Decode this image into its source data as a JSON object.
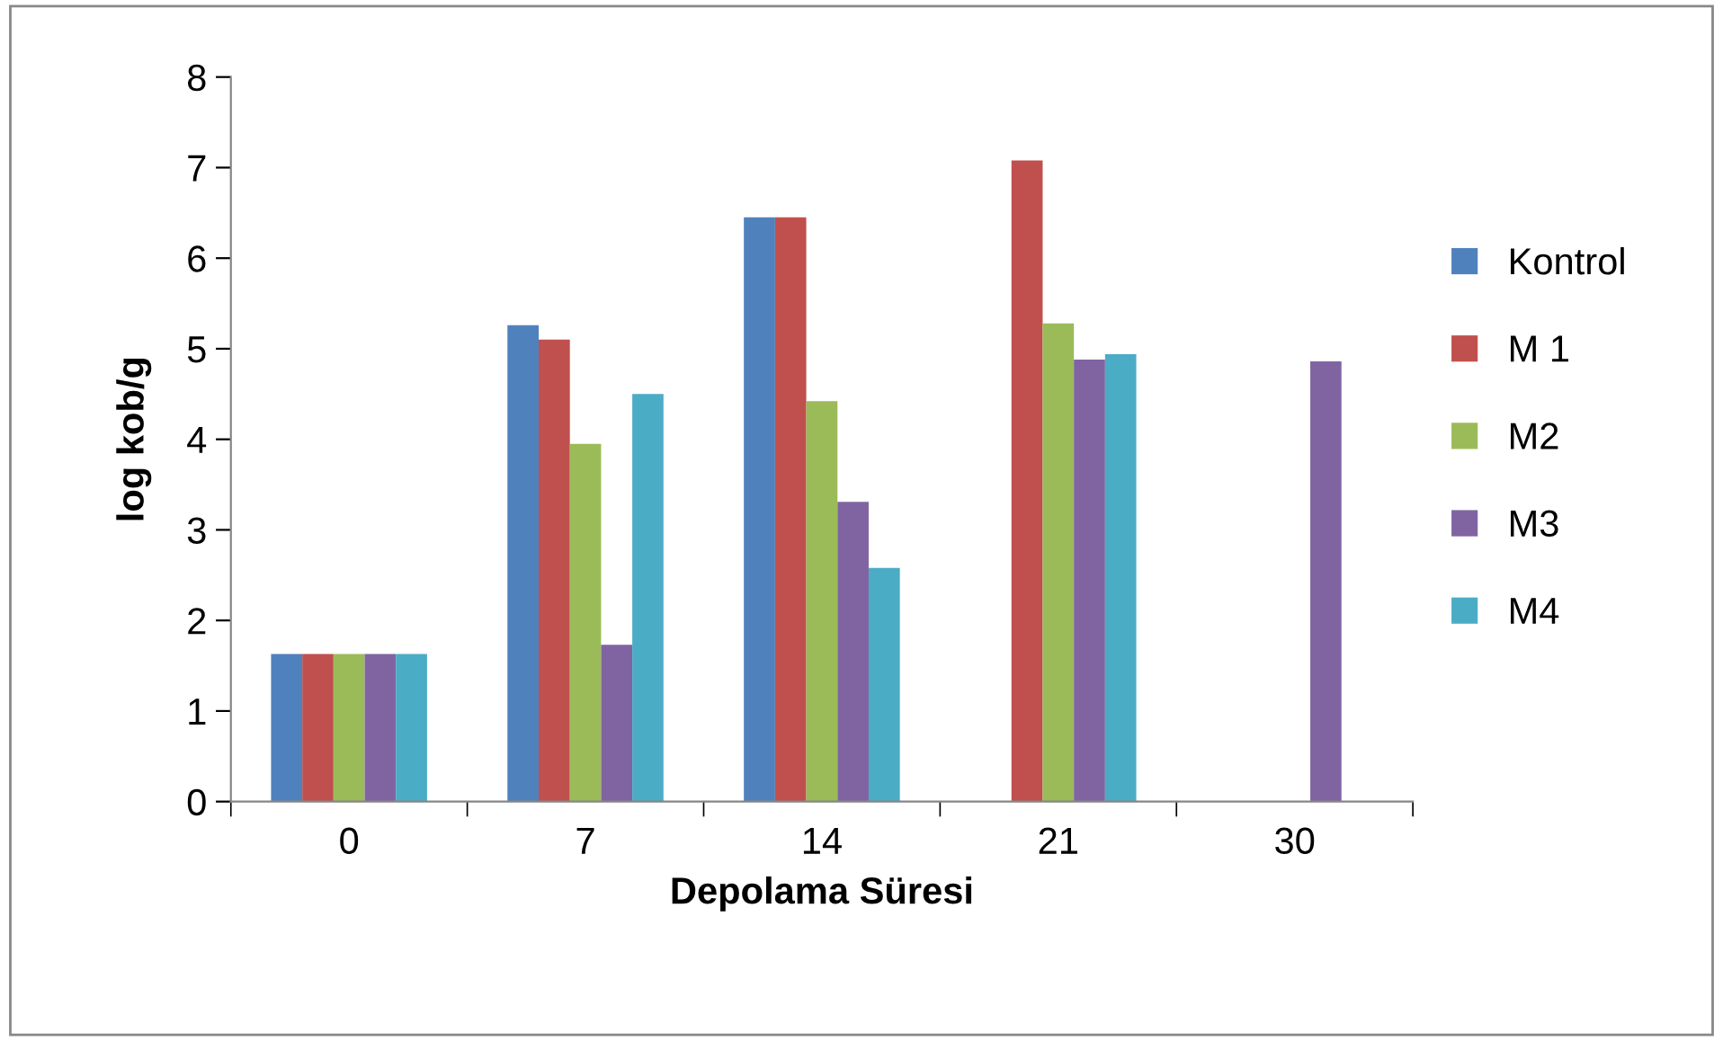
{
  "chart_data": {
    "type": "bar",
    "xlabel": "Depolama Süresi",
    "ylabel": "log kob/g",
    "categories": [
      "0",
      "7",
      "14",
      "21",
      "30"
    ],
    "series": [
      {
        "name": "Kontrol",
        "color": "#4f81bd",
        "values": [
          1.63,
          5.26,
          6.45,
          null,
          null
        ]
      },
      {
        "name": "M 1",
        "color": "#c0504d",
        "values": [
          1.63,
          5.1,
          6.45,
          7.08,
          null
        ]
      },
      {
        "name": "M2",
        "color": "#9bbb59",
        "values": [
          1.63,
          3.95,
          4.42,
          5.28,
          null
        ]
      },
      {
        "name": "M3",
        "color": "#8064a2",
        "values": [
          1.63,
          1.73,
          3.31,
          4.88,
          4.86
        ]
      },
      {
        "name": "M4",
        "color": "#4bacc6",
        "values": [
          1.63,
          4.5,
          2.58,
          4.94,
          null
        ]
      }
    ],
    "ylim": [
      0,
      8
    ],
    "yticks": [
      0,
      1,
      2,
      3,
      4,
      5,
      6,
      7,
      8
    ],
    "grid": false,
    "legend": "right"
  }
}
